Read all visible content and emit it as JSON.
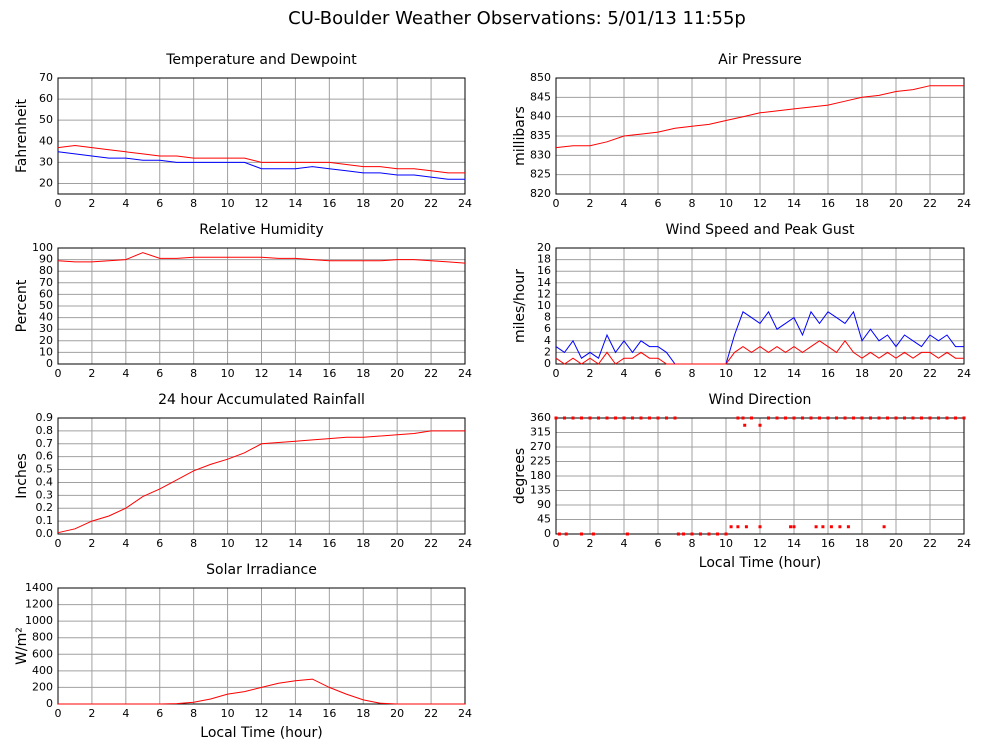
{
  "title": "CU-Boulder Weather Observations: 5/01/13 11:55p",
  "chart_data": [
    {
      "type": "line",
      "title": "Temperature and Dewpoint",
      "ylabel": "Fahrenheit",
      "grid": true,
      "xlim": [
        0,
        24
      ],
      "xticks": [
        0,
        2,
        4,
        6,
        8,
        10,
        12,
        14,
        16,
        18,
        20,
        22,
        24
      ],
      "ylim": [
        15,
        70
      ],
      "yticks": [
        20,
        30,
        40,
        50,
        60,
        70
      ],
      "x": [
        0,
        1,
        2,
        3,
        4,
        5,
        6,
        7,
        8,
        9,
        10,
        11,
        12,
        13,
        14,
        15,
        16,
        17,
        18,
        19,
        20,
        21,
        22,
        23,
        24
      ],
      "series": [
        {
          "color": "#ff0000",
          "values": [
            37,
            38,
            37,
            36,
            35,
            34,
            33,
            33,
            32,
            32,
            32,
            32,
            30,
            30,
            30,
            30,
            30,
            29,
            28,
            28,
            27,
            27,
            26,
            25,
            25
          ]
        },
        {
          "color": "#0000ff",
          "values": [
            35,
            34,
            33,
            32,
            32,
            31,
            31,
            30,
            30,
            30,
            30,
            30,
            27,
            27,
            27,
            28,
            27,
            26,
            25,
            25,
            24,
            24,
            23,
            22,
            22
          ]
        }
      ]
    },
    {
      "type": "line",
      "title": "Air Pressure",
      "ylabel": "millibars",
      "grid": true,
      "xlim": [
        0,
        24
      ],
      "xticks": [
        0,
        2,
        4,
        6,
        8,
        10,
        12,
        14,
        16,
        18,
        20,
        22,
        24
      ],
      "ylim": [
        820,
        850
      ],
      "yticks": [
        820,
        825,
        830,
        835,
        840,
        845,
        850
      ],
      "x": [
        0,
        1,
        2,
        3,
        4,
        5,
        6,
        7,
        8,
        9,
        10,
        11,
        12,
        13,
        14,
        15,
        16,
        17,
        18,
        19,
        20,
        21,
        22,
        23,
        24
      ],
      "series": [
        {
          "color": "#ff0000",
          "values": [
            832,
            832.5,
            832.5,
            833.5,
            835,
            835.5,
            836,
            837,
            837.5,
            838,
            839,
            840,
            841,
            841.5,
            842,
            842.5,
            843,
            844,
            845,
            845.5,
            846.5,
            847,
            848,
            848,
            848
          ]
        }
      ]
    },
    {
      "type": "line",
      "title": "Relative Humidity",
      "ylabel": "Percent",
      "grid": true,
      "xlim": [
        0,
        24
      ],
      "xticks": [
        0,
        2,
        4,
        6,
        8,
        10,
        12,
        14,
        16,
        18,
        20,
        22,
        24
      ],
      "ylim": [
        0,
        100
      ],
      "yticks": [
        0,
        10,
        20,
        30,
        40,
        50,
        60,
        70,
        80,
        90,
        100
      ],
      "x": [
        0,
        1,
        2,
        3,
        4,
        5,
        6,
        7,
        8,
        9,
        10,
        11,
        12,
        13,
        14,
        15,
        16,
        17,
        18,
        19,
        20,
        21,
        22,
        23,
        24
      ],
      "series": [
        {
          "color": "#ff0000",
          "values": [
            89,
            88,
            88,
            89,
            90,
            96,
            91,
            91,
            92,
            92,
            92,
            92,
            92,
            91,
            91,
            90,
            89,
            89,
            89,
            89,
            90,
            90,
            89,
            88,
            87
          ]
        }
      ]
    },
    {
      "type": "line",
      "title": "Wind Speed and Peak Gust",
      "ylabel": "miles/hour",
      "grid": true,
      "xlim": [
        0,
        24
      ],
      "xticks": [
        0,
        2,
        4,
        6,
        8,
        10,
        12,
        14,
        16,
        18,
        20,
        22,
        24
      ],
      "ylim": [
        0,
        20
      ],
      "yticks": [
        0,
        2,
        4,
        6,
        8,
        10,
        12,
        14,
        16,
        18,
        20
      ],
      "x": [
        0,
        0.5,
        1,
        1.5,
        2,
        2.5,
        3,
        3.5,
        4,
        4.5,
        5,
        5.5,
        6,
        6.5,
        7,
        7.5,
        8,
        8.5,
        9,
        9.5,
        10,
        10.5,
        11,
        11.5,
        12,
        12.5,
        13,
        13.5,
        14,
        14.5,
        15,
        15.5,
        16,
        16.5,
        17,
        17.5,
        18,
        18.5,
        19,
        19.5,
        20,
        20.5,
        21,
        21.5,
        22,
        22.5,
        23,
        23.5,
        24
      ],
      "series": [
        {
          "color": "#0000ff",
          "values": [
            3,
            2,
            4,
            1,
            2,
            1,
            5,
            2,
            4,
            2,
            4,
            3,
            3,
            2,
            0,
            0,
            0,
            0,
            0,
            0,
            0,
            5,
            9,
            8,
            7,
            9,
            6,
            7,
            8,
            5,
            9,
            7,
            9,
            8,
            7,
            9,
            4,
            6,
            4,
            5,
            3,
            5,
            4,
            3,
            5,
            4,
            5,
            3,
            3
          ]
        },
        {
          "color": "#ff0000",
          "values": [
            1,
            0,
            1,
            0,
            1,
            0,
            2,
            0,
            1,
            1,
            2,
            1,
            1,
            0,
            0,
            0,
            0,
            0,
            0,
            0,
            0,
            2,
            3,
            2,
            3,
            2,
            3,
            2,
            3,
            2,
            3,
            4,
            3,
            2,
            4,
            2,
            1,
            2,
            1,
            2,
            1,
            2,
            1,
            2,
            2,
            1,
            2,
            1,
            1
          ]
        }
      ]
    },
    {
      "type": "line",
      "title": "24 hour Accumulated Rainfall",
      "ylabel": "Inches",
      "grid": true,
      "xlim": [
        0,
        24
      ],
      "xticks": [
        0,
        2,
        4,
        6,
        8,
        10,
        12,
        14,
        16,
        18,
        20,
        22,
        24
      ],
      "ylim": [
        0,
        0.9
      ],
      "yticks": [
        {
          "value": 0,
          "label": "0.0"
        },
        0.1,
        0.2,
        0.3,
        0.4,
        0.5,
        0.6,
        0.7,
        0.8,
        0.9
      ],
      "x": [
        0,
        1,
        2,
        3,
        4,
        5,
        6,
        7,
        8,
        9,
        10,
        11,
        12,
        13,
        14,
        15,
        16,
        17,
        18,
        19,
        20,
        21,
        22,
        23,
        24
      ],
      "series": [
        {
          "color": "#ff0000",
          "values": [
            0.01,
            0.04,
            0.1,
            0.14,
            0.2,
            0.29,
            0.35,
            0.42,
            0.49,
            0.54,
            0.58,
            0.63,
            0.7,
            0.71,
            0.72,
            0.73,
            0.74,
            0.75,
            0.75,
            0.76,
            0.77,
            0.78,
            0.8,
            0.8,
            0.8
          ]
        }
      ]
    },
    {
      "type": "scatter",
      "title": "Wind Direction",
      "ylabel": "degrees",
      "xlabel": "Local Time (hour)",
      "grid": true,
      "xlim": [
        0,
        24
      ],
      "xticks": [
        0,
        2,
        4,
        6,
        8,
        10,
        12,
        14,
        16,
        18,
        20,
        22,
        24
      ],
      "ylim": [
        0,
        360
      ],
      "yticks": [
        0,
        45,
        90,
        135,
        180,
        225,
        270,
        315,
        360
      ],
      "x": [
        0,
        0.5,
        1,
        1.5,
        2,
        2.5,
        3,
        3.5,
        4,
        4.5,
        5,
        5.5,
        6,
        6.5,
        7,
        10.7,
        11,
        11.5,
        12.5,
        13,
        13.5,
        14,
        14.5,
        15,
        15.5,
        16,
        16.5,
        17,
        17.5,
        18,
        18.5,
        19,
        19.5,
        20,
        20.5,
        21,
        21.5,
        22,
        22.5,
        23,
        23.5,
        24,
        0.2,
        0.6,
        1.5,
        2.2,
        4.2,
        7.2,
        7.5,
        8,
        8.5,
        9,
        9.5,
        10,
        10.3,
        10.7,
        11.2,
        12,
        13.8,
        14,
        15.3,
        15.7,
        16.2,
        16.7,
        17.2,
        19.3,
        11.1,
        12
      ],
      "series": [
        {
          "color": "#ff0000",
          "values": [
            360,
            360,
            360,
            360,
            360,
            360,
            360,
            360,
            360,
            360,
            360,
            360,
            360,
            360,
            360,
            360,
            360,
            360,
            360,
            360,
            360,
            360,
            360,
            360,
            360,
            360,
            360,
            360,
            360,
            360,
            360,
            360,
            360,
            360,
            360,
            360,
            360,
            360,
            360,
            360,
            360,
            360,
            0,
            0,
            0,
            0,
            0,
            0,
            0,
            0,
            0,
            0,
            0,
            0,
            22.5,
            22.5,
            22.5,
            22.5,
            22.5,
            22.5,
            22.5,
            22.5,
            22.5,
            22.5,
            22.5,
            22.5,
            337.5,
            337.5
          ]
        }
      ]
    },
    {
      "type": "line",
      "title": "Solar Irradiance",
      "ylabel": "W/m²",
      "xlabel": "Local Time (hour)",
      "grid": true,
      "xlim": [
        0,
        24
      ],
      "xticks": [
        0,
        2,
        4,
        6,
        8,
        10,
        12,
        14,
        16,
        18,
        20,
        22,
        24
      ],
      "ylim": [
        0,
        1400
      ],
      "yticks": [
        0,
        200,
        400,
        600,
        800,
        1000,
        1200,
        1400
      ],
      "x": [
        0,
        1,
        2,
        3,
        4,
        5,
        6,
        7,
        8,
        9,
        10,
        11,
        12,
        13,
        14,
        15,
        16,
        17,
        18,
        19,
        20,
        21,
        22,
        23,
        24
      ],
      "series": [
        {
          "color": "#ff0000",
          "values": [
            0,
            0,
            0,
            0,
            0,
            0,
            0,
            5,
            20,
            60,
            120,
            150,
            200,
            250,
            280,
            300,
            200,
            120,
            50,
            10,
            0,
            0,
            0,
            0,
            0
          ]
        }
      ]
    }
  ]
}
